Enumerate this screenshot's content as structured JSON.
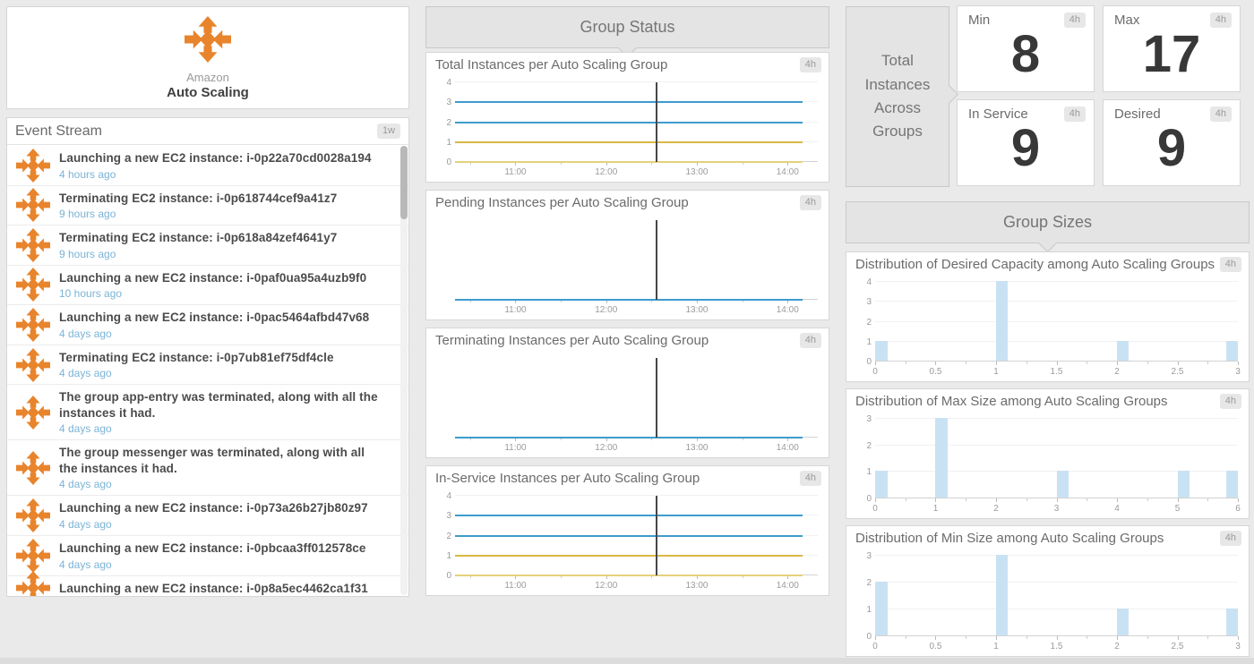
{
  "colors": {
    "accent_orange": "#e8842c",
    "line_blue": "#3e9bcc",
    "line_gold": "#d9b844",
    "line_pale_gold": "#e4d17c",
    "bar_blue": "#c9e2f3",
    "event_marker": "#45474a",
    "note_bg": "#e4e4e4",
    "page_bg": "#eaeaea"
  },
  "logo_card": {
    "brand_top": "Amazon",
    "brand_bottom": "Auto Scaling"
  },
  "event_stream": {
    "title": "Event Stream",
    "timeframe_badge": "1w",
    "events": [
      {
        "title": "Launching a new EC2 instance: i-0p22a70cd0028a194",
        "time": "4 hours ago"
      },
      {
        "title": "Terminating EC2 instance: i-0p618744cef9a41z7",
        "time": "9 hours ago"
      },
      {
        "title": "Terminating EC2 instance: i-0p618a84zef4641y7",
        "time": "9 hours ago"
      },
      {
        "title": "Launching a new EC2 instance: i-0paf0ua95a4uzb9f0",
        "time": "10 hours ago"
      },
      {
        "title": "Launching a new EC2 instance: i-0pac5464afbd47v68",
        "time": "4 days ago"
      },
      {
        "title": "Terminating EC2 instance: i-0p7ub81ef75df4cle",
        "time": "4 days ago"
      },
      {
        "title": "The group app-entry was terminated, along with all the instances it had.",
        "time": "4 days ago"
      },
      {
        "title": "The group messenger was terminated, along with all the instances it had.",
        "time": "4 days ago"
      },
      {
        "title": "Launching a new EC2 instance: i-0p73a26b27jb80z97",
        "time": "4 days ago"
      },
      {
        "title": "Launching a new EC2 instance: i-0pbcaa3ff012578ce",
        "time": "4 days ago"
      },
      {
        "title": "Launching a new EC2 instance: i-0p8a5ec4462ca1f31",
        "time": ""
      }
    ]
  },
  "notes": {
    "group_status": "Group Status",
    "total_instances": "Total Instances Across Groups",
    "group_sizes": "Group Sizes"
  },
  "value_widgets": [
    {
      "label": "Min",
      "value": "8",
      "badge": "4h"
    },
    {
      "label": "Max",
      "value": "17",
      "badge": "4h"
    },
    {
      "label": "In Service",
      "value": "9",
      "badge": "4h"
    },
    {
      "label": "Desired",
      "value": "9",
      "badge": "4h"
    }
  ],
  "chart_data": [
    {
      "type": "line",
      "title": "Total Instances per Auto Scaling Group",
      "badge": "4h",
      "ylim": [
        0,
        4
      ],
      "yticks": [
        0,
        1,
        2,
        3,
        4
      ],
      "x_range": [
        "10:20",
        "14:20"
      ],
      "xticks": [
        "11:00",
        "12:00",
        "13:00",
        "14:00"
      ],
      "series_end": "14:10",
      "event_marker": "12:33",
      "series": [
        {
          "value": 3,
          "color": "#3e9bcc"
        },
        {
          "value": 2,
          "color": "#3e9bcc"
        },
        {
          "value": 1,
          "color": "#d9b844"
        },
        {
          "value": 0,
          "color": "#e4d17c"
        }
      ]
    },
    {
      "type": "line",
      "title": "Pending Instances per Auto Scaling Group",
      "badge": "4h",
      "ylim": [
        0,
        1
      ],
      "yticks": [],
      "x_range": [
        "10:20",
        "14:20"
      ],
      "xticks": [
        "11:00",
        "12:00",
        "13:00",
        "14:00"
      ],
      "series_end": "14:10",
      "event_marker": "12:33",
      "series": [
        {
          "value": 0,
          "color": "#3e9bcc"
        }
      ]
    },
    {
      "type": "line",
      "title": "Terminating Instances per Auto Scaling Group",
      "badge": "4h",
      "ylim": [
        0,
        1
      ],
      "yticks": [],
      "x_range": [
        "10:20",
        "14:20"
      ],
      "xticks": [
        "11:00",
        "12:00",
        "13:00",
        "14:00"
      ],
      "series_end": "14:10",
      "event_marker": "12:33",
      "series": [
        {
          "value": 0,
          "color": "#3e9bcc"
        }
      ]
    },
    {
      "type": "line",
      "title": "In-Service Instances per Auto Scaling Group",
      "badge": "4h",
      "ylim": [
        0,
        4
      ],
      "yticks": [
        0,
        1,
        2,
        3,
        4
      ],
      "x_range": [
        "10:20",
        "14:20"
      ],
      "xticks": [
        "11:00",
        "12:00",
        "13:00",
        "14:00"
      ],
      "series_end": "14:10",
      "event_marker": "12:33",
      "series": [
        {
          "value": 3,
          "color": "#3e9bcc"
        },
        {
          "value": 2,
          "color": "#3e9bcc"
        },
        {
          "value": 1,
          "color": "#d9b844"
        },
        {
          "value": 0,
          "color": "#e4d17c"
        }
      ]
    },
    {
      "type": "histogram",
      "title": "Distribution of Desired Capacity among Auto Scaling Groups",
      "badge": "4h",
      "xlim": [
        0,
        3
      ],
      "xticks": [
        0,
        0.5,
        1,
        1.5,
        2,
        2.5,
        3
      ],
      "ylim": [
        0,
        4
      ],
      "yticks": [
        0,
        1,
        2,
        3,
        4
      ],
      "bar_width": 0.1,
      "bar_color": "#c9e2f3",
      "bars": [
        {
          "x": 0,
          "count": 1
        },
        {
          "x": 1,
          "count": 4
        },
        {
          "x": 2,
          "count": 1
        },
        {
          "x": 2.9,
          "count": 1
        }
      ]
    },
    {
      "type": "histogram",
      "title": "Distribution of Max Size among Auto Scaling Groups",
      "badge": "4h",
      "xlim": [
        0,
        6
      ],
      "xticks": [
        0,
        1,
        2,
        3,
        4,
        5,
        6
      ],
      "ylim": [
        0,
        3
      ],
      "yticks": [
        0,
        1,
        2,
        3
      ],
      "bar_width": 0.2,
      "bar_color": "#c9e2f3",
      "bars": [
        {
          "x": 0,
          "count": 1
        },
        {
          "x": 1,
          "count": 3
        },
        {
          "x": 3,
          "count": 1
        },
        {
          "x": 5,
          "count": 1
        },
        {
          "x": 5.8,
          "count": 1
        }
      ]
    },
    {
      "type": "histogram",
      "title": "Distribution of Min Size among Auto Scaling Groups",
      "badge": "4h",
      "xlim": [
        0,
        3
      ],
      "xticks": [
        0,
        0.5,
        1,
        1.5,
        2,
        2.5,
        3
      ],
      "ylim": [
        0,
        3
      ],
      "yticks": [
        0,
        1,
        2,
        3
      ],
      "bar_width": 0.1,
      "bar_color": "#c9e2f3",
      "bars": [
        {
          "x": 0,
          "count": 2
        },
        {
          "x": 1,
          "count": 3
        },
        {
          "x": 2,
          "count": 1
        },
        {
          "x": 2.9,
          "count": 1
        }
      ]
    }
  ]
}
